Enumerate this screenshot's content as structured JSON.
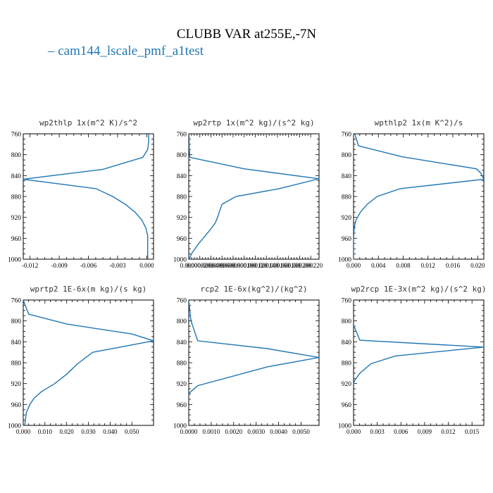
{
  "figure": {
    "title": "CLUBB VAR at255E,-7N",
    "legend_label": "– cam144_lscale_pmf_a1test",
    "series_color": "#1f77b4"
  },
  "chart_data": [
    {
      "type": "line",
      "title": "wp2thlp  1x(m^2 K)/s^2",
      "ylim": [
        760,
        1000
      ],
      "yticks": [
        760,
        800,
        840,
        880,
        920,
        960,
        1000
      ],
      "xlim": [
        -0.0127,
        0.0007
      ],
      "xticks": [
        -0.012,
        -0.009,
        -0.006,
        -0.003,
        0.0
      ],
      "xtick_labels": [
        "-0.012",
        "-0.009",
        "-0.006",
        "-0.003",
        "0.000"
      ],
      "series": [
        {
          "x": [
            0.0002,
            0.0002,
            0.0001,
            -0.0004,
            -0.0045,
            -0.0127,
            -0.0052,
            -0.0035,
            -0.0022,
            -0.0012,
            -0.0005,
            -0.0001,
            0.0001,
            0.0001,
            0.0001
          ],
          "y": [
            760,
            775,
            790,
            805,
            828,
            847,
            865,
            880,
            895,
            910,
            925,
            940,
            955,
            975,
            1000
          ]
        }
      ]
    },
    {
      "type": "line",
      "title": "wp2rtp  1x(m^2 kg)/(s^2 kg)",
      "ylim": [
        760,
        1000
      ],
      "yticks": [
        760,
        800,
        840,
        880,
        920,
        960,
        1000
      ],
      "xlim": [
        0.0,
        0.000235
      ],
      "xticks": [
        0.0,
        2e-05,
        4e-05,
        6e-05,
        8e-05,
        0.0001,
        0.00012,
        0.00014,
        0.00016,
        0.00018,
        0.0002,
        0.00022
      ],
      "xtick_labels": [
        "0.0000",
        "0.0000200",
        "0.0000400",
        "0.0000600",
        "0.0000800",
        "0.000100",
        "0.000120",
        "0.000140",
        "0.000160",
        "0.000180",
        "0.000200",
        "0.000220"
      ],
      "series": [
        {
          "x": [
            5e-07,
            1e-06,
            2e-06,
            0.0001,
            0.000235,
            0.000163,
            8.5e-05,
            6e-05,
            5.5e-05,
            5.2e-05,
            4.8e-05,
            4e-05,
            3e-05,
            1.8e-05,
            6e-06,
            5e-07
          ],
          "y": [
            760,
            790,
            805,
            827,
            846,
            865,
            880,
            895,
            910,
            920,
            930,
            942,
            955,
            970,
            988,
            1000
          ]
        }
      ]
    },
    {
      "type": "line",
      "title": "wpthlp2  1x(m K^2)/s",
      "ylim": [
        760,
        1000
      ],
      "yticks": [
        760,
        800,
        840,
        880,
        920,
        960,
        1000
      ],
      "xlim": [
        0.0,
        0.021
      ],
      "xticks": [
        0.0,
        0.004,
        0.008,
        0.012,
        0.016,
        0.02
      ],
      "xtick_labels": [
        "0.000",
        "0.004",
        "0.008",
        "0.012",
        "0.016",
        "0.020"
      ],
      "series": [
        {
          "x": [
            0.0002,
            0.0008,
            0.0078,
            0.0198,
            0.0205,
            0.021,
            0.0075,
            0.0038,
            0.0022,
            0.0011,
            0.0004,
            0.0001,
            0.0,
            0.0
          ],
          "y": [
            760,
            783,
            804,
            827,
            835,
            847,
            865,
            880,
            895,
            910,
            925,
            940,
            960,
            1000
          ]
        }
      ]
    },
    {
      "type": "line",
      "title": "wprtp2  1E-6x(m kg)/(s kg)",
      "ylim": [
        760,
        1000
      ],
      "yticks": [
        760,
        800,
        840,
        880,
        920,
        960,
        1000
      ],
      "xlim": [
        0.0,
        0.06
      ],
      "xticks": [
        0.0,
        0.01,
        0.02,
        0.03,
        0.04,
        0.05
      ],
      "xtick_labels": [
        "0.000",
        "0.010",
        "0.020",
        "0.030",
        "0.040",
        "0.050"
      ],
      "series": [
        {
          "x": [
            0.0,
            0.0025,
            0.02,
            0.05,
            0.06,
            0.032,
            0.025,
            0.02,
            0.0145,
            0.0085,
            0.005,
            0.003,
            0.0015,
            0.001,
            0.0007
          ],
          "y": [
            760,
            787,
            806,
            825,
            838,
            860,
            882,
            902,
            920,
            935,
            948,
            960,
            975,
            988,
            1000
          ]
        }
      ]
    },
    {
      "type": "line",
      "title": "rcp2  1E-6x(kg^2)/(kg^2)",
      "ylim": [
        760,
        1000
      ],
      "yticks": [
        760,
        800,
        840,
        880,
        920,
        960,
        1000
      ],
      "xlim": [
        0.0,
        0.0058
      ],
      "xticks": [
        0.0,
        0.001,
        0.002,
        0.003,
        0.004,
        0.005
      ],
      "xtick_labels": [
        "0.0000",
        "0.0010",
        "0.0020",
        "0.0030",
        "0.0040",
        "0.0050"
      ],
      "series": [
        {
          "x": [
            0.0,
            0.0001,
            0.0004,
            0.0035,
            0.0058,
            0.0035,
            0.0004,
            0.0001,
            0.0
          ],
          "y": [
            760,
            800,
            838,
            853,
            870,
            888,
            924,
            935,
            940
          ]
        }
      ]
    },
    {
      "type": "line",
      "title": "wp2rcp  1E-3x(m^2 kg)/(s^2 kg)",
      "ylim": [
        760,
        1000
      ],
      "yticks": [
        760,
        800,
        840,
        880,
        920,
        960,
        1000
      ],
      "xlim": [
        0.0,
        0.0165
      ],
      "xticks": [
        0.0,
        0.003,
        0.006,
        0.009,
        0.012,
        0.015
      ],
      "xtick_labels": [
        "0.000",
        "0.003",
        "0.006",
        "0.009",
        "0.012",
        "0.015"
      ],
      "series": [
        {
          "x": [
            0.0,
            0.0008,
            0.0165,
            0.0053,
            0.0022,
            0.0008,
            0.0001,
            0.0
          ],
          "y": [
            808,
            837,
            850,
            867,
            882,
            900,
            915,
            922
          ]
        }
      ]
    }
  ]
}
